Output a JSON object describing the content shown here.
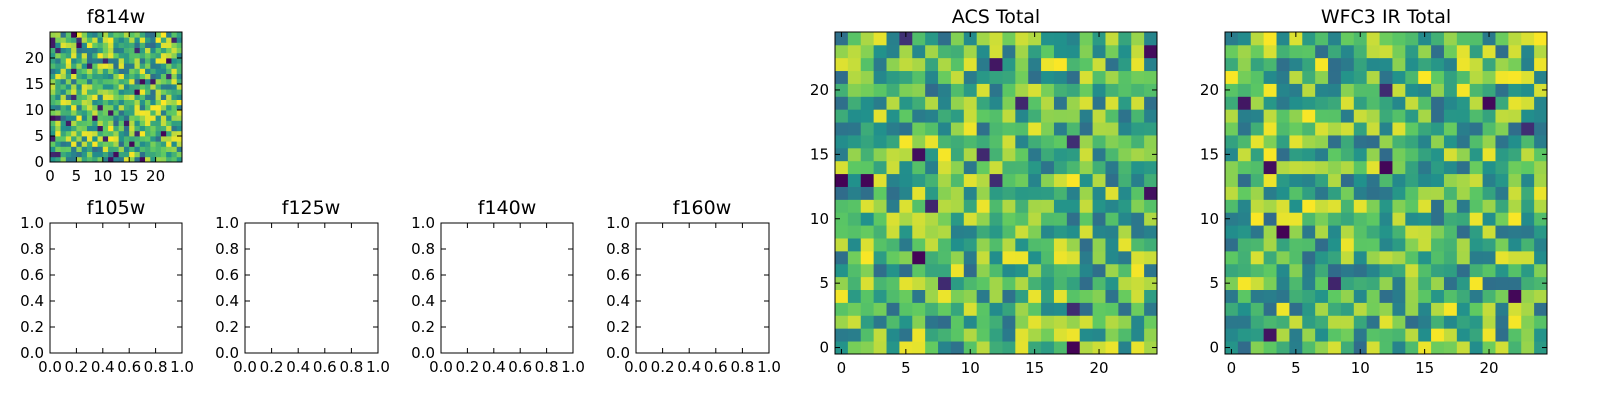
{
  "colors": {
    "background": "#ffffff",
    "axis": "#000000",
    "colormap": [
      "#440154",
      "#3b528b",
      "#21918c",
      "#5ec962",
      "#fde725"
    ]
  },
  "chart_data": [
    {
      "id": "f814w",
      "type": "heatmap",
      "title": "f814w",
      "grid_size": 25,
      "colormap": "viridis",
      "xlim": [
        0,
        25
      ],
      "ylim": [
        0,
        25
      ],
      "xticks": [
        "0",
        "5",
        "10",
        "15",
        "20"
      ],
      "yticks": [
        "0",
        "5",
        "10",
        "15",
        "20"
      ],
      "seed": 11,
      "dark_fraction": 0.05
    },
    {
      "id": "f105w",
      "type": "heatmap",
      "title": "f105w",
      "empty": true,
      "xlim": [
        0,
        1
      ],
      "ylim": [
        0,
        1
      ],
      "xticks": [
        "0.0",
        "0.2",
        "0.4",
        "0.6",
        "0.8",
        "1.0"
      ],
      "yticks": [
        "0.0",
        "0.2",
        "0.4",
        "0.6",
        "0.8",
        "1.0"
      ]
    },
    {
      "id": "f125w",
      "type": "heatmap",
      "title": "f125w",
      "empty": true,
      "xlim": [
        0,
        1
      ],
      "ylim": [
        0,
        1
      ],
      "xticks": [
        "0.0",
        "0.2",
        "0.4",
        "0.6",
        "0.8",
        "1.0"
      ],
      "yticks": [
        "0.0",
        "0.2",
        "0.4",
        "0.6",
        "0.8",
        "1.0"
      ]
    },
    {
      "id": "f140w",
      "type": "heatmap",
      "title": "f140w",
      "empty": true,
      "xlim": [
        0,
        1
      ],
      "ylim": [
        0,
        1
      ],
      "xticks": [
        "0.0",
        "0.2",
        "0.4",
        "0.6",
        "0.8",
        "1.0"
      ],
      "yticks": [
        "0.0",
        "0.2",
        "0.4",
        "0.6",
        "0.8",
        "1.0"
      ]
    },
    {
      "id": "f160w",
      "type": "heatmap",
      "title": "f160w",
      "empty": true,
      "xlim": [
        0,
        1
      ],
      "ylim": [
        0,
        1
      ],
      "xticks": [
        "0.0",
        "0.2",
        "0.4",
        "0.6",
        "0.8",
        "1.0"
      ],
      "yticks": [
        "0.0",
        "0.2",
        "0.4",
        "0.6",
        "0.8",
        "1.0"
      ]
    },
    {
      "id": "acs-total",
      "type": "heatmap",
      "title": "ACS Total",
      "grid_size": 25,
      "colormap": "viridis",
      "xlim": [
        -0.5,
        24.5
      ],
      "ylim": [
        -0.5,
        24.5
      ],
      "xticks": [
        "0",
        "5",
        "10",
        "15",
        "20"
      ],
      "yticks": [
        "0",
        "5",
        "10",
        "15",
        "20"
      ],
      "seed": 29,
      "dark_fraction": 0.02
    },
    {
      "id": "wfc3-ir-total",
      "type": "heatmap",
      "title": "WFC3 IR Total",
      "grid_size": 25,
      "colormap": "viridis",
      "xlim": [
        -0.5,
        24.5
      ],
      "ylim": [
        -0.5,
        24.5
      ],
      "xticks": [
        "0",
        "5",
        "10",
        "15",
        "20"
      ],
      "yticks": [
        "0",
        "5",
        "10",
        "15",
        "20"
      ],
      "seed": 47,
      "dark_fraction": 0.02
    }
  ]
}
